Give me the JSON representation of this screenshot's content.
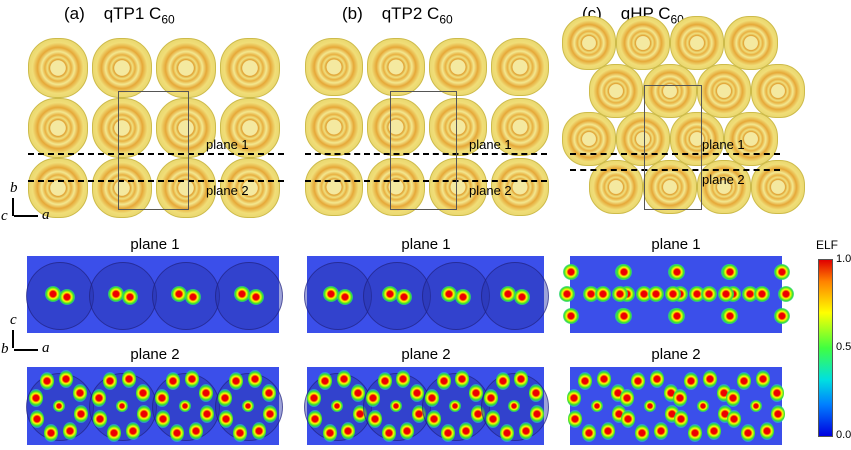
{
  "panels": [
    {
      "label": "(a)",
      "title": "qTP1 C",
      "sub": "60",
      "plane1_label": "plane 1",
      "plane2_label": "plane 2",
      "top_plane1": "plane 1",
      "top_plane2": "plane 2"
    },
    {
      "label": "(b)",
      "title": "qTP2 C",
      "sub": "60",
      "plane1_label": "plane 1",
      "plane2_label": "plane 2",
      "top_plane1": "plane 1",
      "top_plane2": "plane 2"
    },
    {
      "label": "(c)",
      "title": "qHP C",
      "sub": "60",
      "plane1_label": "plane 1",
      "plane2_label": "plane 2",
      "top_plane1": "plane 1",
      "top_plane2": "plane 2"
    }
  ],
  "axes_top": {
    "vertical": "b",
    "horizontal": "a",
    "out": "c"
  },
  "axes_bottom": {
    "vertical": "c",
    "horizontal": "a",
    "out": "b"
  },
  "colorbar": {
    "title": "ELF",
    "max": "1.0",
    "mid": "0.5",
    "min": "0.0",
    "colors": [
      "#e00000",
      "#ffff00",
      "#40ff40",
      "#00e0e0",
      "#0000e0"
    ]
  }
}
